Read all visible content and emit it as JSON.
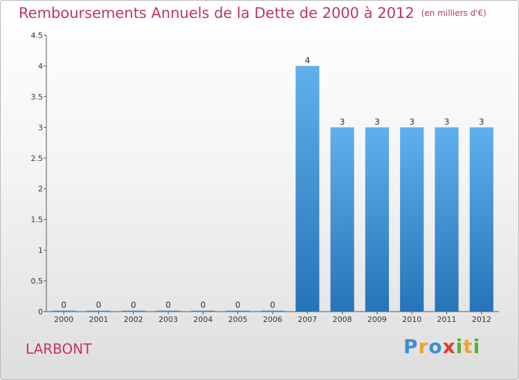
{
  "title": "Remboursements Annuels de la Dette de 2000 à 2012",
  "unit": "(en milliers d'€)",
  "commune": "LARBONT",
  "logo": {
    "text": "Proxiti",
    "letters": [
      "P",
      "r",
      "o",
      "x",
      "i",
      "t",
      "i"
    ],
    "colors": [
      "#3a8ed6",
      "#f2a12a",
      "#3a8ed6",
      "#e23a2f",
      "#52b035",
      "#f2a12a",
      "#52b035"
    ]
  },
  "colors": {
    "bar_top": "#5fb0ec",
    "bar_bottom": "#2674b8",
    "title": "#c0336c"
  },
  "chart_data": {
    "type": "bar",
    "title": "Remboursements Annuels de la Dette de 2000 à 2012",
    "categories": [
      "2000",
      "2001",
      "2002",
      "2003",
      "2004",
      "2005",
      "2006",
      "2007",
      "2008",
      "2009",
      "2010",
      "2011",
      "2012"
    ],
    "values": [
      0,
      0,
      0,
      0,
      0,
      0,
      0,
      4,
      3,
      3,
      3,
      3,
      3
    ],
    "value_labels": [
      "0",
      "0",
      "0",
      "0",
      "0",
      "0",
      "0",
      "4",
      "3",
      "3",
      "3",
      "3",
      "3"
    ],
    "ylim": [
      0,
      4.5
    ],
    "yticks": [
      0,
      0.5,
      1,
      1.5,
      2,
      2.5,
      3,
      3.5,
      4,
      4.5
    ],
    "ytick_labels": [
      "0",
      "0.5",
      "1",
      "1.5",
      "2",
      "2.5",
      "3",
      "3.5",
      "4",
      "4.5"
    ],
    "grid": false,
    "legend": "none"
  }
}
